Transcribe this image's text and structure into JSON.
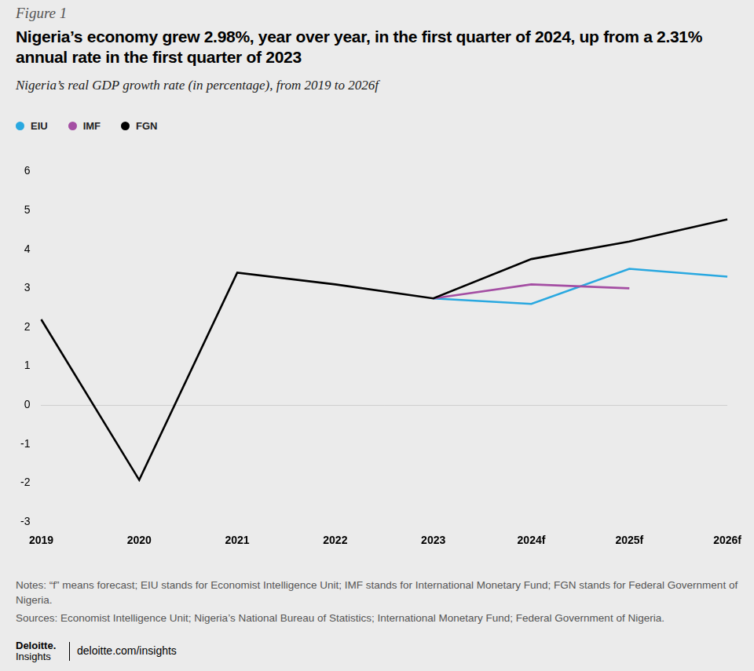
{
  "chart_data": {
    "type": "line",
    "figure_label": "Figure 1",
    "title": "Nigeria’s economy grew 2.98%, year over year, in the first quarter of 2024, up from a 2.31% annual rate in the first quarter of 2023",
    "subtitle": "Nigeria’s real GDP growth rate (in percentage), from 2019 to 2026f",
    "categories": [
      "2019",
      "2020",
      "2021",
      "2022",
      "2023",
      "2024f",
      "2025f",
      "2026f"
    ],
    "series": [
      {
        "name": "EIU",
        "color": "#29a8e0",
        "values": [
          null,
          null,
          null,
          null,
          2.74,
          2.6,
          3.5,
          3.3
        ]
      },
      {
        "name": "IMF",
        "color": "#a44ea3",
        "values": [
          null,
          null,
          null,
          null,
          2.74,
          3.1,
          3.0,
          null
        ]
      },
      {
        "name": "FGN",
        "color": "#000000",
        "values": [
          2.2,
          -1.92,
          3.4,
          3.1,
          2.74,
          3.75,
          4.2,
          4.77
        ]
      }
    ],
    "ylim": [
      -3,
      6
    ],
    "yticks": [
      -3,
      -2,
      -1,
      0,
      1,
      2,
      3,
      4,
      5,
      6
    ],
    "grid": false,
    "legend": "top-left",
    "marker": "none",
    "line_style": "solid",
    "notes": "Notes: “f” means forecast; EIU stands for Economist Intelligence Unit; IMF stands for International Monetary Fund; FGN stands for Federal Government of Nigeria.",
    "sources": "Sources: Economist Intelligence Unit; Nigeria’s National Bureau of Statistics; International Monetary Fund; Federal Government of Nigeria.",
    "brand": "Deloitte. Insights",
    "url": "deloitte.com/insights"
  }
}
